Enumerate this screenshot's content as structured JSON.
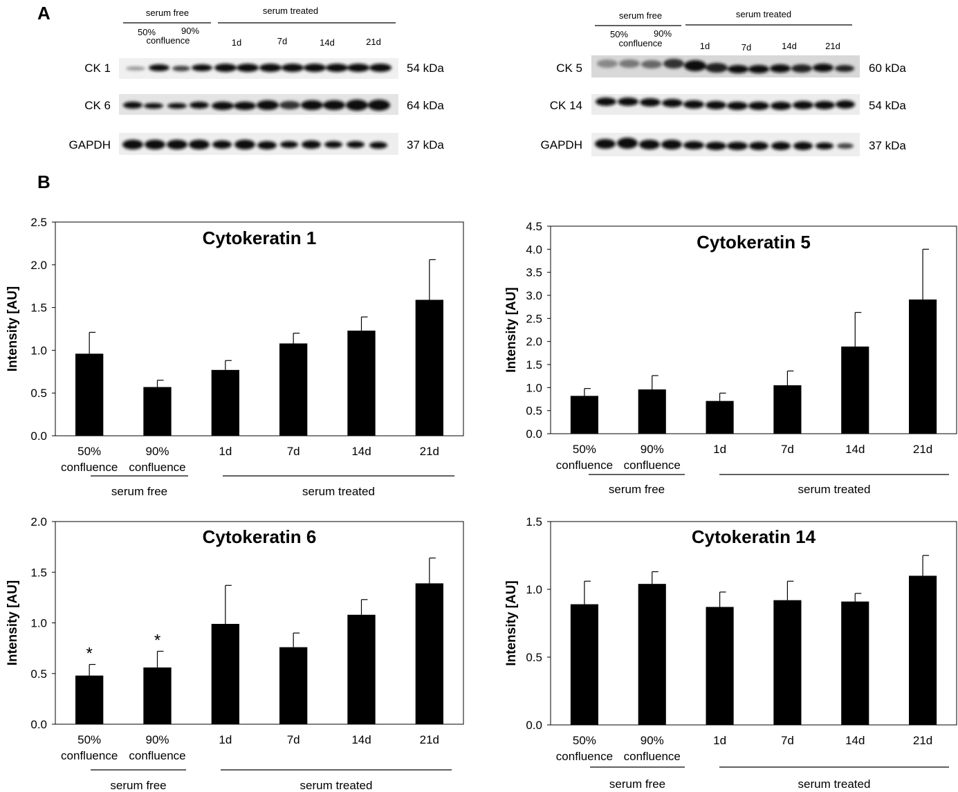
{
  "panel_labels": {
    "a": "A",
    "b": "B"
  },
  "blots": [
    {
      "header": {
        "serum_free": "serum free",
        "serum_treated": "serum treated"
      },
      "confluence": {
        "p50": "50%",
        "p90": "90%",
        "word": "confluence"
      },
      "days": [
        "1d",
        "7d",
        "14d",
        "21d"
      ],
      "rows": [
        {
          "label": "CK 1",
          "mw": "54 kDa"
        },
        {
          "label": "CK 6",
          "mw": "64 kDa"
        },
        {
          "label": "GAPDH",
          "mw": "37 kDa"
        }
      ]
    },
    {
      "header": {
        "serum_free": "serum free",
        "serum_treated": "serum treated"
      },
      "confluence": {
        "p50": "50%",
        "p90": "90%",
        "word": "confluence"
      },
      "days": [
        "1d",
        "7d",
        "14d",
        "21d"
      ],
      "rows": [
        {
          "label": "CK 5",
          "mw": "60 kDa"
        },
        {
          "label": "CK 14",
          "mw": "54 kDa"
        },
        {
          "label": "GAPDH",
          "mw": "37 kDa"
        }
      ]
    }
  ],
  "chart_data": [
    {
      "type": "bar",
      "title": "Cytokeratin 1",
      "ylabel": "Intensity [AU]",
      "ylim": [
        0,
        2.5
      ],
      "yticks": [
        "0.0",
        "0.5",
        "1.0",
        "1.5",
        "2.0",
        "2.5"
      ],
      "categories": [
        "50%\nconfluence",
        "90%\nconfluence",
        "1d",
        "7d",
        "14d",
        "21d"
      ],
      "values": [
        0.96,
        0.57,
        0.77,
        1.08,
        1.23,
        1.59
      ],
      "errors": [
        0.25,
        0.08,
        0.11,
        0.12,
        0.16,
        0.47
      ],
      "annotations": [
        "",
        "",
        "",
        "",
        "",
        ""
      ],
      "groups": [
        "serum free",
        "serum treated"
      ],
      "grid": false
    },
    {
      "type": "bar",
      "title": "Cytokeratin 5",
      "ylabel": "Intensity [AU]",
      "ylim": [
        0,
        4.5
      ],
      "yticks": [
        "0.0",
        "0.5",
        "1.0",
        "1.5",
        "2.0",
        "2.5",
        "3.0",
        "3.5",
        "4.0",
        "4.5"
      ],
      "categories": [
        "50%\nconfluence",
        "90%\nconfluence",
        "1d",
        "7d",
        "14d",
        "21d"
      ],
      "values": [
        0.82,
        0.96,
        0.71,
        1.05,
        1.89,
        2.91
      ],
      "errors": [
        0.16,
        0.3,
        0.17,
        0.31,
        0.74,
        1.09
      ],
      "annotations": [
        "",
        "",
        "",
        "",
        "",
        ""
      ],
      "groups": [
        "serum free",
        "serum treated"
      ],
      "grid": false
    },
    {
      "type": "bar",
      "title": "Cytokeratin 6",
      "ylabel": "Intensity [AU]",
      "ylim": [
        0,
        2.0
      ],
      "yticks": [
        "0.0",
        "0.5",
        "1.0",
        "1.5",
        "2.0"
      ],
      "categories": [
        "50%\nconfluence",
        "90%\nconfluence",
        "1d",
        "7d",
        "14d",
        "21d"
      ],
      "values": [
        0.48,
        0.56,
        0.99,
        0.76,
        1.08,
        1.39
      ],
      "errors": [
        0.11,
        0.16,
        0.38,
        0.14,
        0.15,
        0.25
      ],
      "annotations": [
        "*",
        "*",
        "",
        "",
        "",
        ""
      ],
      "groups": [
        "serum free",
        "serum treated"
      ],
      "grid": false
    },
    {
      "type": "bar",
      "title": "Cytokeratin 14",
      "ylabel": "Intensity [AU]",
      "ylim": [
        0,
        1.5
      ],
      "yticks": [
        "0.0",
        "0.5",
        "1.0",
        "1.5"
      ],
      "categories": [
        "50%\nconfluence",
        "90%\nconfluence",
        "1d",
        "7d",
        "14d",
        "21d"
      ],
      "values": [
        0.89,
        1.04,
        0.87,
        0.92,
        0.91,
        1.1
      ],
      "errors": [
        0.17,
        0.09,
        0.11,
        0.14,
        0.06,
        0.15
      ],
      "annotations": [
        "",
        "",
        "",
        "",
        "",
        ""
      ],
      "groups": [
        "serum free",
        "serum treated"
      ],
      "grid": false
    }
  ]
}
